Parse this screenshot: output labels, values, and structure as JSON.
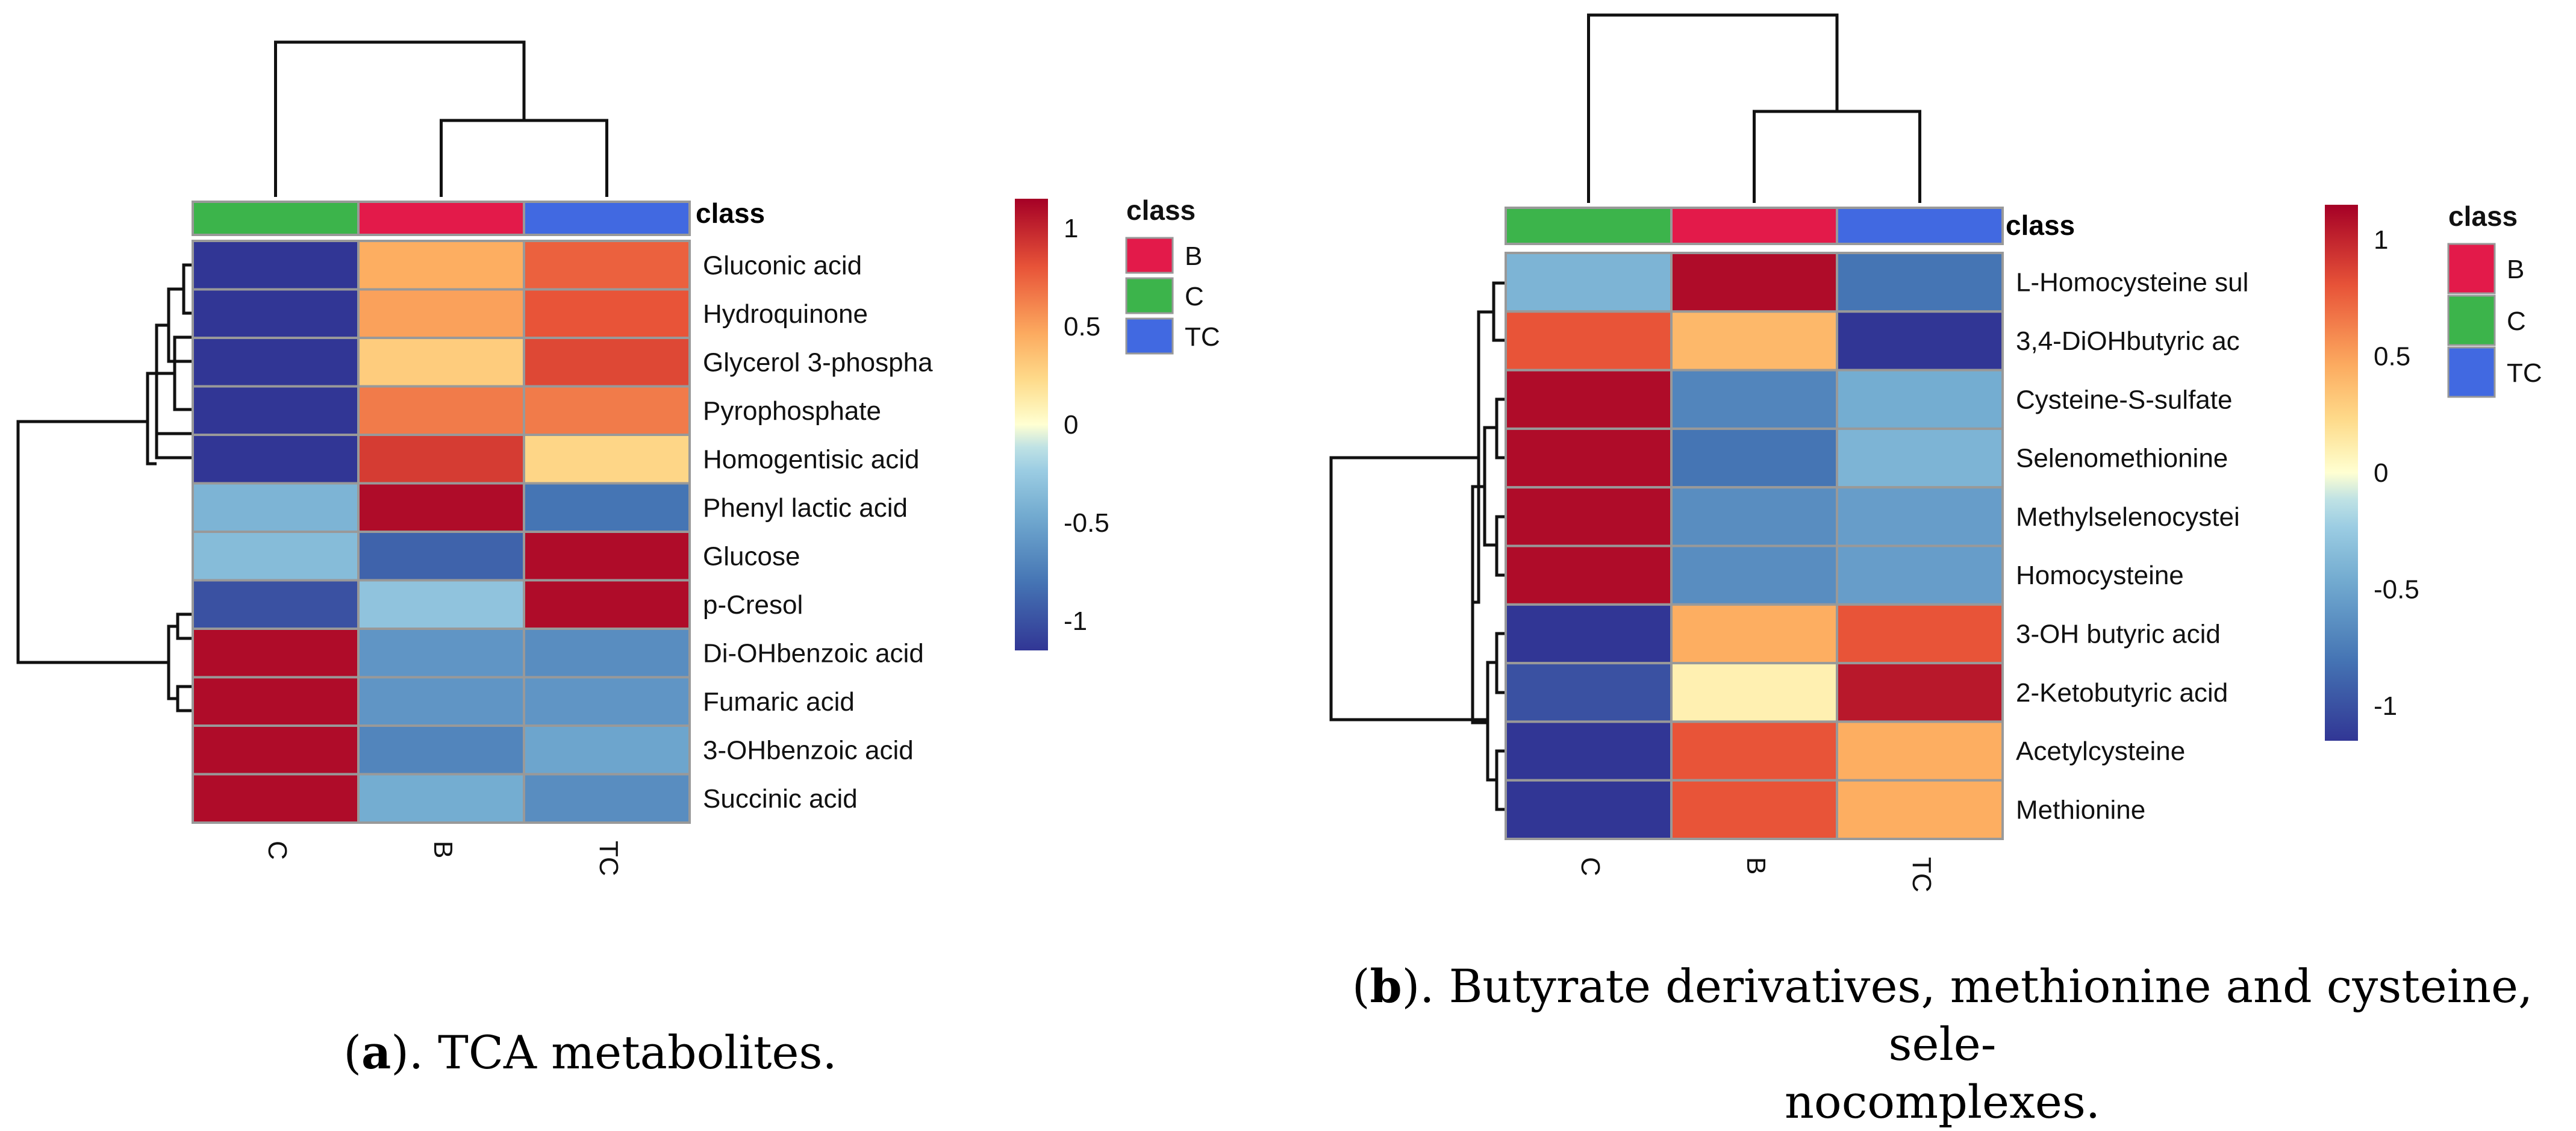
{
  "chart_data": [
    {
      "type": "heatmap",
      "panel": "a",
      "caption_label": "a",
      "caption_text": "). TCA metabolites.",
      "columns": [
        "C",
        "B",
        "TC"
      ],
      "column_classes": [
        "C",
        "B",
        "TC"
      ],
      "class_label": "class",
      "rows": [
        "Gluconic acid",
        "Hydroquinone",
        "Glycerol 3-phospha",
        "Pyrophosphate",
        "Homogentisic acid",
        "Phenyl lactic acid",
        "Glucose",
        "p-Cresol",
        "Di-OHbenzoic acid",
        "Fumaric acid",
        "3-OHbenzoic acid",
        "Succinic acid"
      ],
      "values": [
        [
          -1.15,
          0.45,
          0.75
        ],
        [
          -1.15,
          0.5,
          0.8
        ],
        [
          -1.15,
          0.3,
          0.85
        ],
        [
          -1.15,
          0.65,
          0.65
        ],
        [
          -1.15,
          0.9,
          0.25
        ],
        [
          -0.4,
          1.1,
          -0.8
        ],
        [
          -0.35,
          -0.9,
          1.1
        ],
        [
          -1.0,
          -0.3,
          1.1
        ],
        [
          1.1,
          -0.6,
          -0.65
        ],
        [
          1.1,
          -0.6,
          -0.6
        ],
        [
          1.1,
          -0.7,
          -0.5
        ],
        [
          1.1,
          -0.45,
          -0.65
        ]
      ],
      "color_scale": {
        "min": -1.15,
        "max": 1.15,
        "ticks": [
          "1",
          "0.5",
          "0",
          "-0.5",
          "-1"
        ],
        "tick_values": [
          1,
          0.5,
          0,
          -0.5,
          -1
        ]
      },
      "legend": {
        "title": "class",
        "entries": [
          {
            "label": "B",
            "color": "#e31a4a"
          },
          {
            "label": "C",
            "color": "#3cb44b"
          },
          {
            "label": "TC",
            "color": "#4169e1"
          }
        ]
      }
    },
    {
      "type": "heatmap",
      "panel": "b",
      "caption_label": "b",
      "caption_text": "). Butyrate derivatives, methionine and cysteine, sele-",
      "caption_line2": "nocomplexes.",
      "columns": [
        "C",
        "B",
        "TC"
      ],
      "column_classes": [
        "C",
        "B",
        "TC"
      ],
      "class_label": "class",
      "rows": [
        "L-Homocysteine sul",
        "3,4-DiOHbutyric ac",
        "Cysteine-S-sulfate",
        "Selenomethionine",
        "Methylselenocystei",
        "Homocysteine",
        "3-OH butyric acid",
        "2-Ketobutyric acid",
        "Acetylcysteine",
        "Methionine"
      ],
      "values": [
        [
          -0.4,
          1.1,
          -0.8
        ],
        [
          0.8,
          0.4,
          -1.15
        ],
        [
          1.1,
          -0.7,
          -0.45
        ],
        [
          1.1,
          -0.8,
          -0.4
        ],
        [
          1.1,
          -0.65,
          -0.55
        ],
        [
          1.1,
          -0.65,
          -0.55
        ],
        [
          -1.15,
          0.45,
          0.8
        ],
        [
          -1.0,
          0.1,
          1.05
        ],
        [
          -1.15,
          0.8,
          0.45
        ],
        [
          -1.15,
          0.8,
          0.45
        ]
      ],
      "color_scale": {
        "min": -1.15,
        "max": 1.15,
        "ticks": [
          "1",
          "0.5",
          "0",
          "-0.5",
          "-1"
        ],
        "tick_values": [
          1,
          0.5,
          0,
          -0.5,
          -1
        ]
      },
      "legend": {
        "title": "class",
        "entries": [
          {
            "label": "B",
            "color": "#e31a4a"
          },
          {
            "label": "C",
            "color": "#3cb44b"
          },
          {
            "label": "TC",
            "color": "#4169e1"
          }
        ]
      }
    }
  ]
}
